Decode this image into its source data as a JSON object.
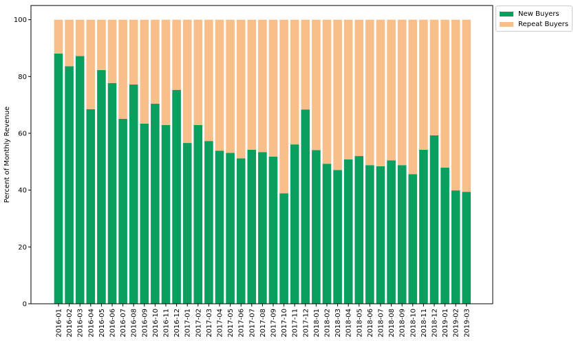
{
  "chart_data": {
    "type": "bar",
    "stacked": true,
    "ylabel": "Percent of Monthly Revenue",
    "xlabel": "",
    "title": "",
    "ylim": [
      0,
      105
    ],
    "yticks": [
      0,
      20,
      40,
      60,
      80,
      100
    ],
    "grid": false,
    "legend_position": "outside-top-right",
    "colors": {
      "new": "#0a9e5f",
      "repeat": "#f8bf8a"
    },
    "categories": [
      "2016-01",
      "2016-02",
      "2016-03",
      "2016-04",
      "2016-05",
      "2016-06",
      "2016-07",
      "2016-08",
      "2016-09",
      "2016-10",
      "2016-11",
      "2016-12",
      "2017-01",
      "2017-02",
      "2017-03",
      "2017-04",
      "2017-05",
      "2017-06",
      "2017-07",
      "2017-08",
      "2017-09",
      "2017-10",
      "2017-11",
      "2017-12",
      "2018-01",
      "2018-02",
      "2018-03",
      "2018-04",
      "2018-05",
      "2018-06",
      "2018-07",
      "2018-08",
      "2018-09",
      "2018-10",
      "2018-11",
      "2018-12",
      "2019-01",
      "2019-02",
      "2019-03"
    ],
    "series": [
      {
        "name": "New Buyers",
        "color": "#0a9e5f",
        "values": [
          88.1,
          83.6,
          87.2,
          68.5,
          82.3,
          77.7,
          65.1,
          77.2,
          63.4,
          70.4,
          62.9,
          75.3,
          56.6,
          62.9,
          57.3,
          53.9,
          53.1,
          51.2,
          54.2,
          53.4,
          51.8,
          38.9,
          56.1,
          68.4,
          54.1,
          49.3,
          47.1,
          50.8,
          52.0,
          48.8,
          48.4,
          50.5,
          48.8,
          45.6,
          54.2,
          59.3,
          47.9,
          39.9,
          39.4
        ]
      },
      {
        "name": "Repeat Buyers",
        "color": "#f8bf8a",
        "values": [
          11.9,
          16.4,
          12.8,
          31.5,
          17.7,
          22.3,
          34.9,
          22.8,
          36.6,
          29.6,
          37.1,
          24.7,
          43.4,
          37.1,
          42.7,
          46.1,
          46.9,
          48.8,
          45.8,
          46.6,
          48.2,
          61.1,
          43.9,
          31.6,
          45.9,
          50.7,
          52.9,
          49.2,
          48.0,
          51.2,
          51.6,
          49.5,
          51.2,
          54.4,
          45.8,
          40.7,
          52.1,
          60.1,
          60.6
        ]
      }
    ]
  }
}
